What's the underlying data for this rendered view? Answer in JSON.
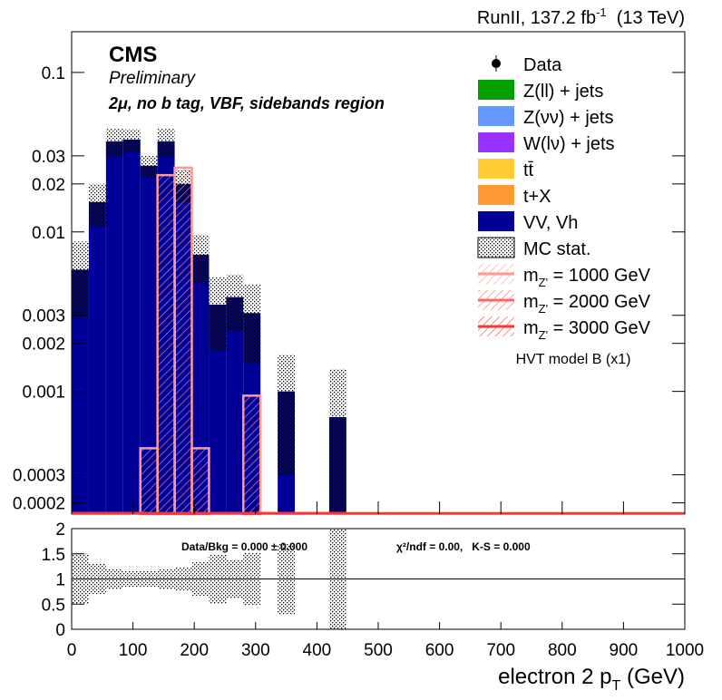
{
  "chart_data": {
    "type": "histogram",
    "lumi": [
      "RunII, 137.2 fb",
      "-1",
      "  (13 TeV)"
    ],
    "experiment": "CMS",
    "status": "Preliminary",
    "region": "2μ, no b tag, VBF, sidebands region",
    "model_note": "HVT model B (x1)",
    "x_label": [
      "electron 2 p",
      "T",
      " (GeV)"
    ],
    "bins": [
      0,
      28,
      56,
      84,
      112,
      140,
      168,
      196,
      224,
      252,
      280,
      308,
      336,
      364,
      392,
      420,
      448
    ],
    "xlim": [
      0,
      1000
    ],
    "xticks": [
      0,
      100,
      200,
      300,
      400,
      500,
      600,
      700,
      800,
      900,
      1000
    ],
    "ylim": [
      0.00017,
      0.18
    ],
    "log_y": true,
    "yticks": [
      0.1,
      0.03,
      0.02,
      0.01,
      0.003,
      0.002,
      0.001,
      0.0003,
      0.0002
    ],
    "data": {
      "name": "Data",
      "color": "#000000"
    },
    "series": [
      {
        "name": "Z(ll) + jets",
        "color": "#00a000",
        "values": [
          0,
          0,
          0,
          0,
          0,
          0,
          0,
          0,
          0,
          0,
          0,
          0,
          0,
          0,
          0,
          0
        ]
      },
      {
        "name": "Z(νν) + jets",
        "color": "#6699ff",
        "values": [
          0,
          0,
          0,
          0,
          0,
          0,
          0,
          0,
          0,
          0,
          0,
          0,
          0,
          0,
          0,
          0
        ]
      },
      {
        "name": "W(lν) + jets",
        "color": "#9933ff",
        "values": [
          0,
          0,
          0,
          0,
          0,
          0,
          0,
          0,
          0,
          0,
          0,
          0,
          0,
          0,
          0,
          0
        ]
      },
      {
        "name": "tt̄",
        "color": "#ffcc33",
        "values": [
          0,
          0,
          0,
          0,
          0,
          0,
          0,
          0,
          0,
          0,
          0,
          0,
          0,
          0,
          0,
          0
        ]
      },
      {
        "name": "t+X",
        "color": "#ff9933",
        "values": [
          0,
          0,
          0,
          0,
          0,
          0,
          0,
          0,
          0,
          0,
          0,
          0,
          0,
          0,
          0,
          0
        ]
      },
      {
        "name": "VV, Vh",
        "color": "#000099",
        "values": [
          0.0058,
          0.0154,
          0.037,
          0.038,
          0.026,
          0.037,
          0.02,
          0.0072,
          0.0035,
          0.0039,
          0.0031,
          0,
          0.001,
          0,
          0,
          0.00069
        ]
      }
    ],
    "mc_stat": {
      "name": "MC stat.",
      "errors": [
        0.0029,
        0.0046,
        0.0073,
        0.006,
        0.004,
        0.0073,
        0.0046,
        0.0024,
        0.0017,
        0.0015,
        0.0016,
        0,
        0.0007,
        0,
        0,
        0.00069
      ]
    },
    "signals": [
      {
        "name": "m",
        "name_sub": "Z'",
        "name_rest": " = 1000 GeV",
        "color": "#ff9999",
        "values": [
          0,
          0,
          0,
          0,
          0.00044,
          0.0227,
          0.0253,
          0.00044,
          0,
          0,
          0.00094,
          0,
          0,
          0,
          0,
          0
        ]
      },
      {
        "name": "m",
        "name_sub": "Z'",
        "name_rest": " = 2000 GeV",
        "color": "#ff6666",
        "values": [
          0,
          0,
          0,
          0,
          0,
          0,
          0,
          0,
          0,
          0,
          0,
          0,
          0,
          0,
          0,
          0
        ]
      },
      {
        "name": "m",
        "name_sub": "Z'",
        "name_rest": " = 3000 GeV",
        "color": "#ff3333",
        "values": [
          0,
          0,
          0,
          0,
          0,
          0,
          0,
          0,
          0,
          0,
          0,
          0,
          0,
          0,
          0,
          0
        ]
      }
    ],
    "ratio": {
      "ylim": [
        0,
        2
      ],
      "yticks": [
        0,
        0.5,
        1,
        1.5,
        2
      ],
      "reference": 1,
      "texts": [
        "Data/Bkg = 0.000 ± 0.000",
        "χ²/ndf = 0.00,   K-S = 0.000"
      ]
    }
  }
}
